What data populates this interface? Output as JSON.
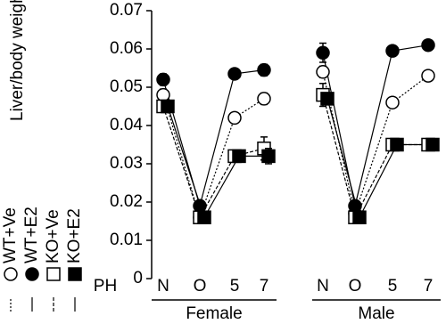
{
  "chart_data": {
    "type": "line",
    "y_label": "Liver/body weight",
    "x_label": "PH",
    "categories": [
      "N",
      "O",
      "5",
      "7",
      "N",
      "O",
      "5",
      "7"
    ],
    "groups": [
      "Female",
      "Male"
    ],
    "series": [
      {
        "name": "WT+Ve",
        "color": "#000000",
        "fill": "#ffffff",
        "marker": "circle",
        "dash": "2,2",
        "values": [
          0.048,
          0.016,
          0.042,
          0.047,
          0.054,
          0.017,
          0.046,
          0.053
        ],
        "errors": [
          0.0015,
          0.001,
          0.001,
          0.0015,
          0.0015,
          0.001,
          0.0012,
          0.001
        ]
      },
      {
        "name": "WT+E2",
        "color": "#000000",
        "fill": "#000000",
        "marker": "circle",
        "dash": "none",
        "values": [
          0.052,
          0.019,
          0.0535,
          0.0545,
          0.059,
          0.019,
          0.0595,
          0.061
        ],
        "errors": [
          0.0015,
          0.001,
          0.001,
          0.0015,
          0.0025,
          0.001,
          0.001,
          0.001
        ]
      },
      {
        "name": "KO+Ve",
        "color": "#000000",
        "fill": "#ffffff",
        "marker": "square",
        "dash": "4,2",
        "values": [
          0.045,
          0.016,
          0.032,
          0.034,
          0.048,
          0.016,
          0.035,
          0.035
        ],
        "errors": [
          0.0015,
          0.001,
          0.001,
          0.003,
          0.003,
          0.001,
          0.001,
          0.001
        ]
      },
      {
        "name": "KO+E2",
        "color": "#000000",
        "fill": "#000000",
        "marker": "square",
        "dash": "none",
        "values": [
          0.045,
          0.016,
          0.032,
          0.032,
          0.047,
          0.016,
          0.035,
          0.035
        ],
        "errors": [
          0.001,
          0.001,
          0.001,
          0.002,
          0.001,
          0.001,
          0.001,
          0.001
        ]
      }
    ],
    "ylim": [
      0,
      0.07
    ],
    "yticks": [
      0,
      0.01,
      0.02,
      0.03,
      0.04,
      0.05,
      0.06,
      0.07
    ]
  }
}
